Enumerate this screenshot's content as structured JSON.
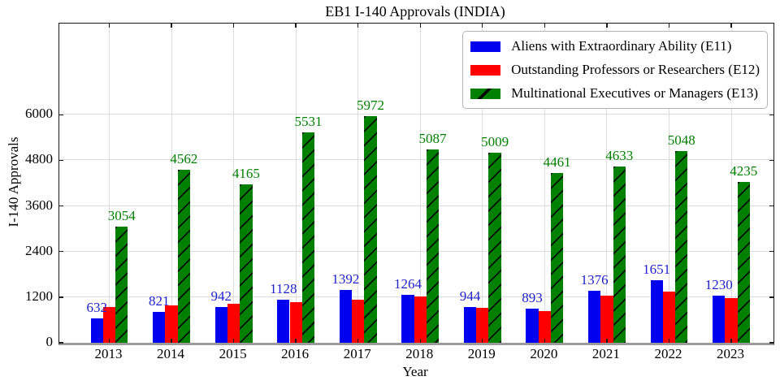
{
  "chart_data": {
    "type": "bar",
    "title": "EB1 I-140 Approvals (INDIA)",
    "xlabel": "Year",
    "ylabel": "I-140 Approvals",
    "categories": [
      "2013",
      "2014",
      "2015",
      "2016",
      "2017",
      "2018",
      "2019",
      "2020",
      "2021",
      "2022",
      "2023"
    ],
    "yticks": [
      0,
      1200,
      2400,
      3600,
      4800,
      6000
    ],
    "ylim": [
      0,
      8400
    ],
    "grid": true,
    "legend_position": "upper right",
    "series": [
      {
        "key": "e11",
        "name": "Aliens with Extraordinary Ability (E11)",
        "color": "#0000ee",
        "hatch": "none",
        "labels_shown": true,
        "label_color": "#2222cc",
        "values": [
          632,
          821,
          942,
          1128,
          1392,
          1264,
          944,
          893,
          1376,
          1651,
          1230
        ]
      },
      {
        "key": "e12",
        "name": "Outstanding Professors or Researchers (E12)",
        "color": "#fe0000",
        "hatch": "none",
        "labels_shown": false,
        "note": "no value labels shown in chart; values estimated from bar heights",
        "values": [
          950,
          975,
          1030,
          1065,
          1130,
          1220,
          920,
          835,
          1235,
          1355,
          1175
        ]
      },
      {
        "key": "e13",
        "name": "Multinational Executives or Managers (E13)",
        "color": "#008000",
        "hatch": "/",
        "labels_shown": true,
        "label_color": "#008000",
        "values": [
          3054,
          4562,
          4165,
          5531,
          5972,
          5087,
          5009,
          4461,
          4633,
          5048,
          4235
        ]
      }
    ]
  }
}
